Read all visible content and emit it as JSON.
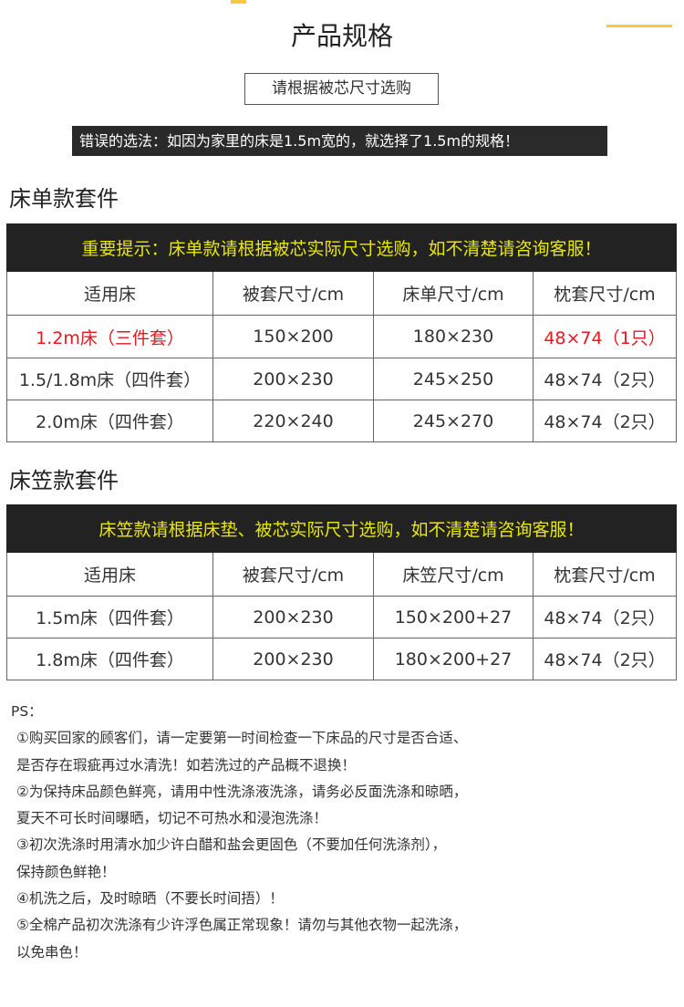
{
  "header": {
    "title": "产品规格",
    "subtitle_button": "请根据被芯尺寸选购",
    "warning": "错误的选法：如因为家里的床是1.5m宽的，就选择了1.5m的规格！"
  },
  "colors": {
    "accent": "#f5c84a",
    "notice_text": "#e8e800",
    "highlight": "#e8161d",
    "dark": "#222222"
  },
  "sheet_set": {
    "title": "床单款套件",
    "notice": "重要提示：床单款请根据被芯实际尺寸选购，如不清楚请咨询客服！",
    "headers": [
      "适用床",
      "被套尺寸/cm",
      "床单尺寸/cm",
      "枕套尺寸/cm"
    ],
    "rows": [
      [
        "1.2m床（三件套）",
        "150×200",
        "180×230",
        "48×74（1只）"
      ],
      [
        "1.5/1.8m床（四件套）",
        "200×230",
        "245×250",
        "48×74（2只）"
      ],
      [
        "2.0m床（四件套）",
        "220×240",
        "245×270",
        "48×74（2只）"
      ]
    ]
  },
  "fitted_set": {
    "title": "床笠款套件",
    "notice": "床笠款请根据床垫、被芯实际尺寸选购，如不清楚请咨询客服！",
    "headers": [
      "适用床",
      "被套尺寸/cm",
      "床笠尺寸/cm",
      "枕套尺寸/cm"
    ],
    "rows": [
      [
        "1.5m床（四件套）",
        "200×230",
        "150×200+27",
        "48×74（2只）"
      ],
      [
        "1.8m床（四件套）",
        "200×230",
        "180×200+27",
        "48×74（2只）"
      ]
    ]
  },
  "ps": {
    "label": "PS：",
    "lines": [
      "①购买回家的顾客们，请一定要第一时间检查一下床品的尺寸是否合适、",
      "是否存在瑕疵再过水清洗！如若洗过的产品概不退换！",
      "②为保持床品颜色鲜亮，请用中性洗涤液洗涤，请务必反面洗涤和晾晒，",
      "夏天不可长时间曝晒，切记不可热水和浸泡洗涤！",
      "③初次洗涤时用清水加少许白醋和盐会更固色（不要加任何洗涤剂），",
      "保持颜色鲜艳！",
      "④机洗之后，及时晾晒（不要长时间捂）！",
      "⑤全棉产品初次洗涤有少许浮色属正常现象！请勿与其他衣物一起洗涤，",
      "以免串色！"
    ]
  }
}
